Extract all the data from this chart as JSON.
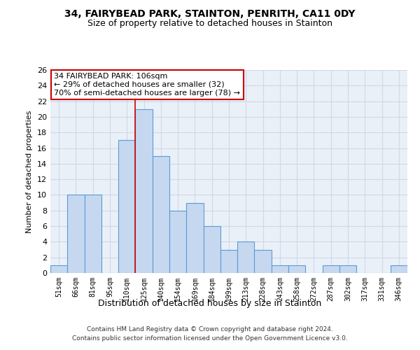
{
  "title1": "34, FAIRYBEAD PARK, STAINTON, PENRITH, CA11 0DY",
  "title2": "Size of property relative to detached houses in Stainton",
  "xlabel": "Distribution of detached houses by size in Stainton",
  "ylabel": "Number of detached properties",
  "categories": [
    "51sqm",
    "66sqm",
    "81sqm",
    "95sqm",
    "110sqm",
    "125sqm",
    "140sqm",
    "154sqm",
    "169sqm",
    "184sqm",
    "199sqm",
    "213sqm",
    "228sqm",
    "243sqm",
    "258sqm",
    "272sqm",
    "287sqm",
    "302sqm",
    "317sqm",
    "331sqm",
    "346sqm"
  ],
  "values": [
    1,
    10,
    10,
    0,
    17,
    21,
    15,
    8,
    9,
    6,
    3,
    4,
    3,
    1,
    1,
    0,
    1,
    1,
    0,
    0,
    1
  ],
  "bar_color": "#c5d8f0",
  "bar_edge_color": "#5b9bd5",
  "grid_color": "#d0d8e8",
  "background_color": "#eaf0f8",
  "vline_x": 4.5,
  "annotation_text": "34 FAIRYBEAD PARK: 106sqm\n← 29% of detached houses are smaller (32)\n70% of semi-detached houses are larger (78) →",
  "annotation_box_color": "#ffffff",
  "annotation_box_edge": "#cc0000",
  "footer": "Contains HM Land Registry data © Crown copyright and database right 2024.\nContains public sector information licensed under the Open Government Licence v3.0.",
  "ylim": [
    0,
    26
  ],
  "yticks": [
    0,
    2,
    4,
    6,
    8,
    10,
    12,
    14,
    16,
    18,
    20,
    22,
    24,
    26
  ]
}
